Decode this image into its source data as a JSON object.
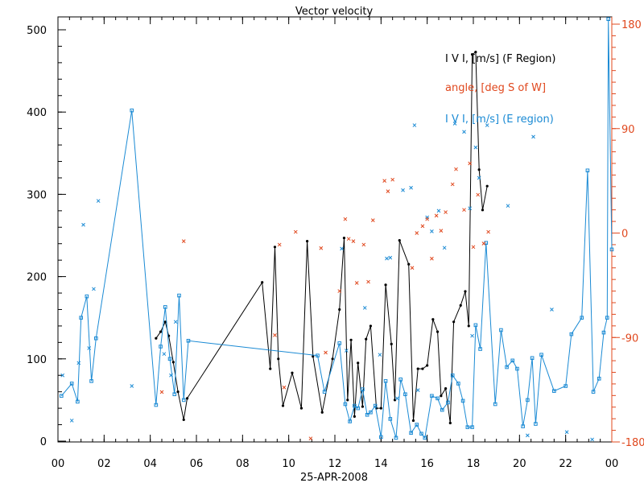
{
  "chart_data": {
    "type": "line",
    "title": "Vector velocity",
    "xlabel": "25-APR-2008",
    "x_ticks": [
      "00",
      "02",
      "04",
      "06",
      "08",
      "10",
      "12",
      "14",
      "16",
      "18",
      "20",
      "22",
      "00"
    ],
    "x_unit": "hour",
    "xlim": [
      0,
      24
    ],
    "ylim_left": [
      0,
      520
    ],
    "y_ticks_left": [
      0,
      100,
      200,
      300,
      400,
      500
    ],
    "ylim_right": [
      -180,
      180
    ],
    "y_ticks_right": [
      -180,
      -90,
      0,
      90,
      180
    ],
    "grid": false,
    "legend": [
      {
        "label": "I V I, [m/s] (F Region)",
        "color": "#000000"
      },
      {
        "label": "angle, [deg S of W]",
        "color": "#e0481e"
      },
      {
        "label": "I V I, [m/s] (E region)",
        "color": "#1a8ad4"
      }
    ],
    "colors": {
      "f_region": "#000000",
      "angle": "#e0481e",
      "e_region": "#1a8ad4",
      "axis_right": "#e0481e"
    },
    "series": [
      {
        "name": "I V I, [m/s] (F Region)",
        "axis": "left",
        "marker": "dot-line",
        "points": [
          [
            4.25,
            125
          ],
          [
            4.45,
            133
          ],
          [
            4.65,
            145
          ],
          [
            4.8,
            128
          ],
          [
            5.0,
            96
          ],
          [
            5.2,
            60
          ],
          [
            5.45,
            26
          ],
          [
            5.6,
            52
          ],
          [
            8.85,
            193
          ],
          [
            9.2,
            88
          ],
          [
            9.4,
            236
          ],
          [
            9.55,
            100
          ],
          [
            9.75,
            43
          ],
          [
            10.15,
            83
          ],
          [
            10.55,
            40
          ],
          [
            10.8,
            243
          ],
          [
            11.05,
            103
          ],
          [
            11.45,
            35
          ],
          [
            11.9,
            100
          ],
          [
            12.2,
            160
          ],
          [
            12.4,
            247
          ],
          [
            12.55,
            50
          ],
          [
            12.7,
            123
          ],
          [
            12.85,
            30
          ],
          [
            13.0,
            95
          ],
          [
            13.2,
            42
          ],
          [
            13.35,
            124
          ],
          [
            13.55,
            140
          ],
          [
            13.8,
            40
          ],
          [
            14.0,
            40
          ],
          [
            14.2,
            190
          ],
          [
            14.45,
            118
          ],
          [
            14.6,
            50
          ],
          [
            14.8,
            244
          ],
          [
            15.2,
            215
          ],
          [
            15.4,
            25
          ],
          [
            15.6,
            88
          ],
          [
            15.8,
            88
          ],
          [
            16.0,
            92
          ],
          [
            16.25,
            148
          ],
          [
            16.45,
            133
          ],
          [
            16.6,
            55
          ],
          [
            16.8,
            64
          ],
          [
            17.0,
            22
          ],
          [
            17.15,
            145
          ],
          [
            17.45,
            165
          ],
          [
            17.65,
            182
          ],
          [
            17.8,
            140
          ],
          [
            17.95,
            470
          ],
          [
            18.1,
            473
          ],
          [
            18.25,
            330
          ],
          [
            18.4,
            281
          ],
          [
            18.6,
            310
          ]
        ]
      },
      {
        "name": "I V I, [m/s] (E region)",
        "axis": "left",
        "marker": "square-line",
        "points": [
          [
            0.15,
            55
          ],
          [
            0.6,
            70
          ],
          [
            0.85,
            48
          ],
          [
            1.0,
            150
          ],
          [
            1.25,
            176
          ],
          [
            1.45,
            73
          ],
          [
            1.65,
            125
          ],
          [
            3.2,
            402
          ],
          [
            4.25,
            44
          ],
          [
            4.45,
            115
          ],
          [
            4.65,
            163
          ],
          [
            4.85,
            100
          ],
          [
            5.05,
            57
          ],
          [
            5.25,
            177
          ],
          [
            5.45,
            50
          ],
          [
            5.65,
            122
          ],
          [
            11.25,
            104
          ],
          [
            11.55,
            60
          ],
          [
            12.2,
            119
          ],
          [
            12.45,
            45
          ],
          [
            12.65,
            24
          ],
          [
            12.85,
            43
          ],
          [
            13.0,
            40
          ],
          [
            13.2,
            63
          ],
          [
            13.4,
            32
          ],
          [
            13.55,
            35
          ],
          [
            13.75,
            43
          ],
          [
            14.0,
            5
          ],
          [
            14.2,
            73
          ],
          [
            14.4,
            27
          ],
          [
            14.65,
            4
          ],
          [
            14.85,
            75
          ],
          [
            15.05,
            57
          ],
          [
            15.3,
            10
          ],
          [
            15.55,
            20
          ],
          [
            15.75,
            9
          ],
          [
            15.9,
            4
          ],
          [
            16.2,
            55
          ],
          [
            16.45,
            52
          ],
          [
            16.65,
            38
          ],
          [
            16.9,
            47
          ],
          [
            17.1,
            80
          ],
          [
            17.35,
            70
          ],
          [
            17.55,
            49
          ],
          [
            17.75,
            17
          ],
          [
            17.95,
            17
          ],
          [
            18.1,
            141
          ],
          [
            18.3,
            112
          ],
          [
            18.55,
            241
          ],
          [
            18.95,
            45
          ],
          [
            19.2,
            135
          ],
          [
            19.45,
            90
          ],
          [
            19.7,
            98
          ],
          [
            19.9,
            88
          ],
          [
            20.15,
            18
          ],
          [
            20.35,
            50
          ],
          [
            20.55,
            101
          ],
          [
            20.7,
            21
          ],
          [
            20.95,
            105
          ],
          [
            21.5,
            61
          ],
          [
            22.0,
            67
          ],
          [
            22.25,
            130
          ],
          [
            22.7,
            150
          ],
          [
            22.95,
            329
          ],
          [
            23.2,
            60
          ],
          [
            23.45,
            76
          ],
          [
            23.65,
            132
          ],
          [
            23.8,
            150
          ],
          [
            23.85,
            513
          ],
          [
            24.0,
            233
          ]
        ]
      },
      {
        "name": "I V I, [m/s] (E region) scatter",
        "axis": "left",
        "marker": "x",
        "points": [
          [
            0.2,
            80
          ],
          [
            0.6,
            25
          ],
          [
            0.9,
            95
          ],
          [
            1.1,
            263
          ],
          [
            1.35,
            113
          ],
          [
            1.55,
            185
          ],
          [
            1.75,
            292
          ],
          [
            3.2,
            67
          ],
          [
            4.6,
            106
          ],
          [
            4.9,
            80
          ],
          [
            5.1,
            145
          ],
          [
            12.3,
            234
          ],
          [
            12.5,
            110
          ],
          [
            13.3,
            162
          ],
          [
            13.95,
            105
          ],
          [
            14.25,
            222
          ],
          [
            14.4,
            223
          ],
          [
            14.7,
            52
          ],
          [
            14.95,
            305
          ],
          [
            15.3,
            308
          ],
          [
            15.45,
            384
          ],
          [
            15.6,
            62
          ],
          [
            16.0,
            272
          ],
          [
            16.2,
            255
          ],
          [
            16.5,
            280
          ],
          [
            16.75,
            235
          ],
          [
            17.2,
            386
          ],
          [
            17.6,
            376
          ],
          [
            17.85,
            283
          ],
          [
            17.95,
            128
          ],
          [
            18.1,
            357
          ],
          [
            18.25,
            320
          ],
          [
            18.6,
            384
          ],
          [
            19.5,
            286
          ],
          [
            20.35,
            7
          ],
          [
            20.6,
            370
          ],
          [
            21.4,
            160
          ],
          [
            22.05,
            11
          ],
          [
            23.15,
            2
          ]
        ]
      },
      {
        "name": "angle, [deg S of W]",
        "axis": "right",
        "marker": "x",
        "points": [
          [
            4.5,
            -137
          ],
          [
            5.45,
            -7
          ],
          [
            9.4,
            -88
          ],
          [
            9.6,
            -10
          ],
          [
            9.8,
            -133
          ],
          [
            10.3,
            1
          ],
          [
            10.95,
            -177
          ],
          [
            11.4,
            -13
          ],
          [
            11.6,
            -103
          ],
          [
            12.2,
            -50
          ],
          [
            12.45,
            12
          ],
          [
            12.6,
            -5
          ],
          [
            12.8,
            -7
          ],
          [
            12.95,
            -43
          ],
          [
            13.25,
            -10
          ],
          [
            13.45,
            -42
          ],
          [
            13.65,
            11
          ],
          [
            14.15,
            45
          ],
          [
            14.3,
            36
          ],
          [
            14.5,
            46
          ],
          [
            15.35,
            -30
          ],
          [
            15.55,
            0
          ],
          [
            15.8,
            6
          ],
          [
            16.0,
            12
          ],
          [
            16.2,
            -22
          ],
          [
            16.4,
            15
          ],
          [
            16.6,
            2
          ],
          [
            16.8,
            18
          ],
          [
            17.1,
            42
          ],
          [
            17.25,
            55
          ],
          [
            17.6,
            20
          ],
          [
            17.85,
            60
          ],
          [
            18.0,
            -12
          ],
          [
            18.2,
            33
          ],
          [
            18.45,
            -9
          ],
          [
            18.65,
            1
          ]
        ]
      }
    ]
  }
}
